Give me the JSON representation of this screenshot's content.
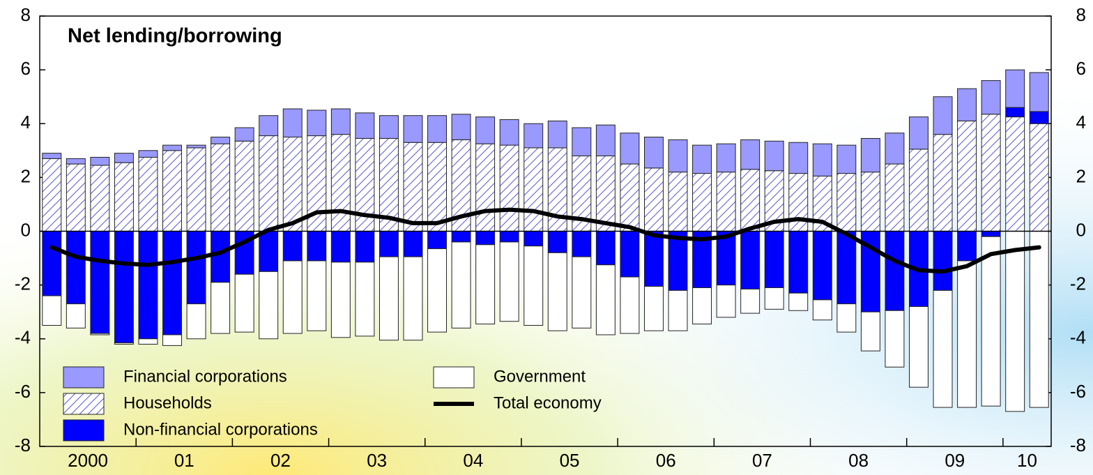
{
  "chart_data": {
    "type": "bar",
    "stacked": true,
    "title": "Net lending/borrowing",
    "categories": [
      "2000",
      null,
      null,
      null,
      "01",
      null,
      null,
      null,
      "02",
      null,
      null,
      null,
      "03",
      null,
      null,
      null,
      "04",
      null,
      null,
      null,
      "05",
      null,
      null,
      null,
      "06",
      null,
      null,
      null,
      "07",
      null,
      null,
      null,
      "08",
      null,
      null,
      null,
      "09",
      null,
      null,
      null,
      "10",
      null
    ],
    "series": [
      {
        "name": "Households",
        "color": "#ffffff",
        "hatch": "#5a5ad0",
        "values": [
          2.7,
          2.5,
          2.45,
          2.55,
          2.75,
          3.0,
          3.1,
          3.25,
          3.35,
          3.55,
          3.5,
          3.55,
          3.6,
          3.45,
          3.45,
          3.3,
          3.3,
          3.4,
          3.25,
          3.2,
          3.1,
          3.1,
          2.8,
          2.8,
          2.5,
          2.35,
          2.2,
          2.15,
          2.2,
          2.3,
          2.25,
          2.15,
          2.05,
          2.15,
          2.2,
          2.5,
          3.05,
          3.6,
          4.1,
          4.35,
          4.25,
          4.0
        ]
      },
      {
        "name": "Non-financial corporations",
        "color": "#0000ff",
        "values": [
          -2.4,
          -2.7,
          -3.8,
          -4.15,
          -4.0,
          -3.85,
          -2.7,
          -1.9,
          -1.6,
          -1.5,
          -1.1,
          -1.1,
          -1.15,
          -1.15,
          -0.95,
          -0.95,
          -0.65,
          -0.4,
          -0.5,
          -0.4,
          -0.55,
          -0.8,
          -0.95,
          -1.25,
          -1.7,
          -2.05,
          -2.2,
          -2.1,
          -2.0,
          -2.15,
          -2.1,
          -2.3,
          -2.55,
          -2.7,
          -3.0,
          -2.95,
          -2.8,
          -2.2,
          -1.1,
          -0.2,
          0.35,
          0.45
        ]
      },
      {
        "name": "Financial corporations",
        "color": "#9999ff",
        "values": [
          0.2,
          0.2,
          0.3,
          0.35,
          0.25,
          0.2,
          0.1,
          0.25,
          0.5,
          0.75,
          1.05,
          0.95,
          0.95,
          0.95,
          0.85,
          1.0,
          1.0,
          0.95,
          1.0,
          0.95,
          0.9,
          1.0,
          1.05,
          1.15,
          1.15,
          1.15,
          1.2,
          1.05,
          1.05,
          1.1,
          1.1,
          1.15,
          1.2,
          1.05,
          1.25,
          1.15,
          1.2,
          1.4,
          1.2,
          1.25,
          1.4,
          1.45
        ]
      },
      {
        "name": "Government",
        "color": "#ffffff",
        "values": [
          -1.1,
          -0.9,
          -0.05,
          -0.05,
          -0.2,
          -0.4,
          -1.3,
          -1.9,
          -2.15,
          -2.5,
          -2.7,
          -2.6,
          -2.8,
          -2.75,
          -3.1,
          -3.1,
          -3.1,
          -3.2,
          -2.95,
          -2.95,
          -2.95,
          -2.9,
          -2.65,
          -2.6,
          -2.1,
          -1.65,
          -1.5,
          -1.35,
          -1.2,
          -0.9,
          -0.8,
          -0.65,
          -0.75,
          -1.05,
          -1.45,
          -2.1,
          -3.0,
          -4.35,
          -5.45,
          -6.3,
          -6.7,
          -6.55
        ]
      },
      {
        "name": "Total economy",
        "type": "line",
        "color": "#000000",
        "values": [
          -0.6,
          -0.95,
          -1.1,
          -1.2,
          -1.25,
          -1.15,
          -1.0,
          -0.8,
          -0.4,
          0.05,
          0.3,
          0.7,
          0.75,
          0.6,
          0.5,
          0.3,
          0.3,
          0.55,
          0.75,
          0.8,
          0.75,
          0.55,
          0.45,
          0.3,
          0.15,
          -0.15,
          -0.25,
          -0.3,
          -0.2,
          0.1,
          0.35,
          0.45,
          0.35,
          -0.1,
          -0.6,
          -1.1,
          -1.45,
          -1.5,
          -1.3,
          -0.85,
          -0.7,
          -0.6
        ]
      }
    ],
    "ylim": [
      -8,
      8
    ],
    "yticks": [
      -8,
      -6,
      -4,
      -2,
      0,
      2,
      4,
      6,
      8
    ],
    "y2lim": [
      -8,
      8
    ],
    "y2ticks": [
      -8,
      -6,
      -4,
      -2,
      0,
      2,
      4,
      6,
      8
    ],
    "legend": "bottom-left"
  }
}
